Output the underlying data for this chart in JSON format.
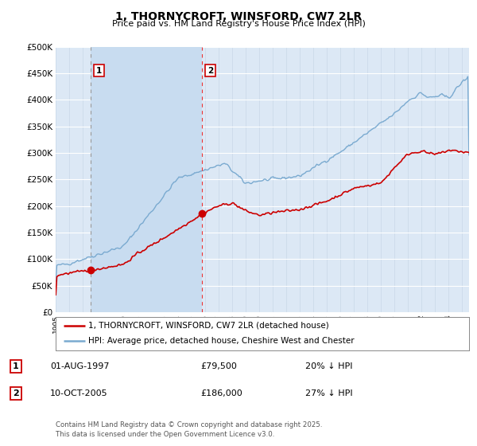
{
  "title": "1, THORNYCROFT, WINSFORD, CW7 2LR",
  "subtitle": "Price paid vs. HM Land Registry's House Price Index (HPI)",
  "legend_line1": "1, THORNYCROFT, WINSFORD, CW7 2LR (detached house)",
  "legend_line2": "HPI: Average price, detached house, Cheshire West and Chester",
  "annotation1_date": "01-AUG-1997",
  "annotation1_price": "£79,500",
  "annotation1_hpi": "20% ↓ HPI",
  "annotation2_date": "10-OCT-2005",
  "annotation2_price": "£186,000",
  "annotation2_hpi": "27% ↓ HPI",
  "footnote": "Contains HM Land Registry data © Crown copyright and database right 2025.\nThis data is licensed under the Open Government Licence v3.0.",
  "xmin": 1995.0,
  "xmax": 2025.5,
  "ymin": 0,
  "ymax": 500000,
  "yticks": [
    0,
    50000,
    100000,
    150000,
    200000,
    250000,
    300000,
    350000,
    400000,
    450000,
    500000
  ],
  "sale1_x": 1997.58,
  "sale1_y": 79500,
  "sale2_x": 2005.78,
  "sale2_y": 186000,
  "bg_color": "#dce8f5",
  "shade_color": "#c8dcf0",
  "grid_color": "#d0d8e4",
  "sale_color": "#cc0000",
  "hpi_color": "#7aaad0",
  "vline1_color": "#aaaaaa",
  "vline2_color": "#ee3333"
}
